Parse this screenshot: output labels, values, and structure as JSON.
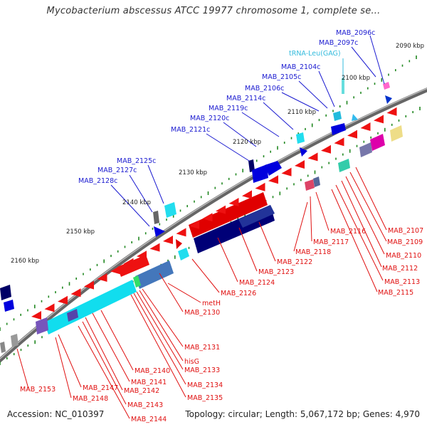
{
  "title": "Mycobacterium abscessus ATCC 19977 chromosome 1, complete se...",
  "footer": {
    "accession": "Accession: NC_010397",
    "summary": "Topology: circular; Length: 5,067,172 bp; Genes: 4,970"
  },
  "colors": {
    "backbone": "#777777",
    "forward_label": "#1a1ad0",
    "reverse_label": "#e01010",
    "trna_label": "#33bbdd",
    "tick": "#228822"
  },
  "scale_ticks": [
    {
      "label": "2090 kbp"
    },
    {
      "label": "2100 kbp"
    },
    {
      "label": "2110 kbp"
    },
    {
      "label": "2120 kbp"
    },
    {
      "label": "2130 kbp"
    },
    {
      "label": "2140 kbp"
    },
    {
      "label": "2150 kbp"
    },
    {
      "label": "2160 kbp"
    }
  ],
  "forward_labels": [
    {
      "text": "MAB_2096c"
    },
    {
      "text": "MAB_2097c"
    },
    {
      "text": "MAB_2104c"
    },
    {
      "text": "MAB_2105c"
    },
    {
      "text": "MAB_2106c"
    },
    {
      "text": "MAB_2114c"
    },
    {
      "text": "MAB_2119c"
    },
    {
      "text": "MAB_2120c"
    },
    {
      "text": "MAB_2121c"
    },
    {
      "text": "MAB_2125c"
    },
    {
      "text": "MAB_2127c"
    },
    {
      "text": "MAB_2128c"
    }
  ],
  "trna_label": {
    "text": "tRNA-Leu(GAG)"
  },
  "reverse_labels": [
    {
      "text": "MAB_2107"
    },
    {
      "text": "MAB_2109"
    },
    {
      "text": "MAB_2110"
    },
    {
      "text": "MAB_2112"
    },
    {
      "text": "MAB_2113"
    },
    {
      "text": "MAB_2115"
    },
    {
      "text": "MAB_2116"
    },
    {
      "text": "MAB_2117"
    },
    {
      "text": "MAB_2118"
    },
    {
      "text": "MAB_2122"
    },
    {
      "text": "MAB_2123"
    },
    {
      "text": "MAB_2124"
    },
    {
      "text": "MAB_2126"
    },
    {
      "text": "metH"
    },
    {
      "text": "MAB_2130"
    },
    {
      "text": "MAB_2131"
    },
    {
      "text": "hisG"
    },
    {
      "text": "MAB_2133"
    },
    {
      "text": "MAB_2134"
    },
    {
      "text": "MAB_2135"
    },
    {
      "text": "MAB_2140"
    },
    {
      "text": "MAB_2141"
    },
    {
      "text": "MAB_2142"
    },
    {
      "text": "MAB_2143"
    },
    {
      "text": "MAB_2144"
    },
    {
      "text": "MAB_2147"
    },
    {
      "text": "MAB_2148"
    },
    {
      "text": "MAB_2153"
    }
  ]
}
